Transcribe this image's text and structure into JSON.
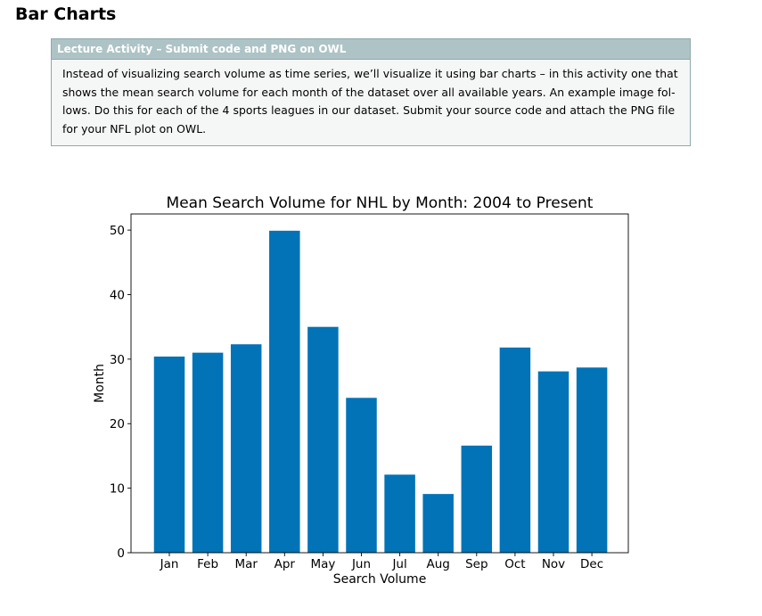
{
  "page": {
    "section_title": "Bar Charts"
  },
  "activity": {
    "header": "Lecture Activity – Submit code and PNG on OWL",
    "lines": [
      "Instead of visualizing search volume as time series, we’ll visualize it using bar charts – in this activity one that",
      "shows the mean search volume for each month of the dataset over all available years. An example image fol-",
      "lows. Do this for each of the 4 sports leagues in our dataset. Submit your source code and attach the PNG file",
      "for your NFL plot on OWL."
    ]
  },
  "colors": {
    "bar": "#0173b6",
    "header_bg": "#aec3c5",
    "box_bg": "#f5f6f6"
  },
  "chart_data": {
    "type": "bar",
    "title": "Mean Search Volume for NHL by Month: 2004 to Present",
    "xlabel": "Search Volume",
    "ylabel": "Month",
    "categories": [
      "Jan",
      "Feb",
      "Mar",
      "Apr",
      "May",
      "Jun",
      "Jul",
      "Aug",
      "Sep",
      "Oct",
      "Nov",
      "Dec"
    ],
    "values": [
      30.4,
      31.0,
      32.3,
      49.9,
      35.0,
      24.0,
      12.1,
      9.1,
      16.6,
      31.8,
      28.1,
      28.7
    ],
    "ylim": [
      0,
      52.5
    ],
    "yticks": [
      0,
      10,
      20,
      30,
      40,
      50
    ],
    "grid": false
  }
}
